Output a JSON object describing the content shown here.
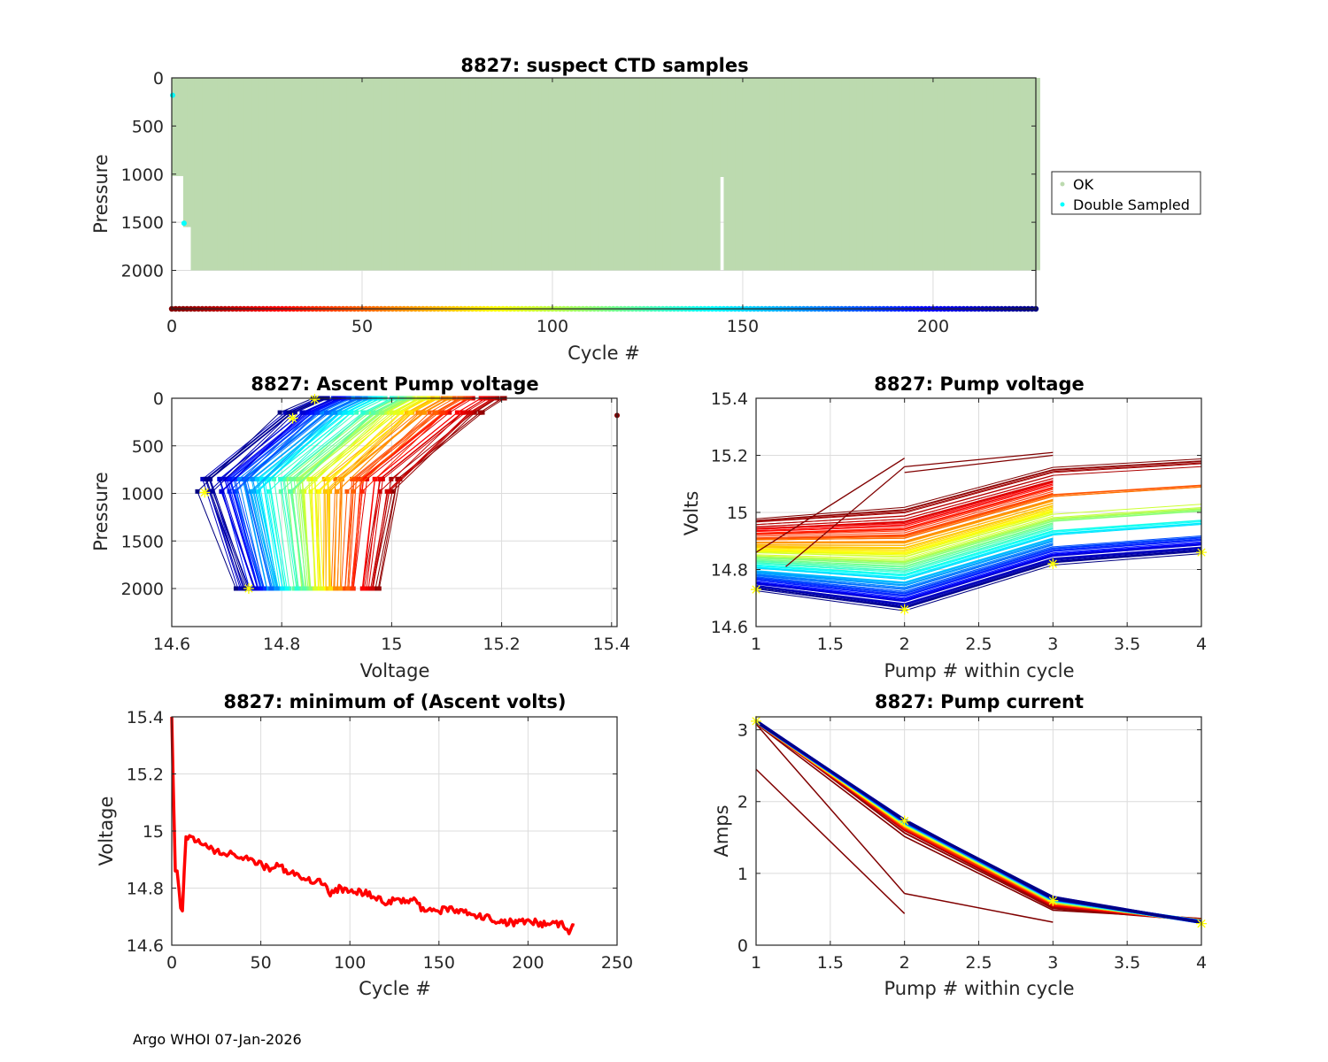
{
  "figure": {
    "footer": "Argo WHOI 07-Jan-2026",
    "float_id": "8827"
  },
  "chart_data": [
    {
      "id": "suspect-ctd",
      "type": "scatter",
      "title": "8827: suspect CTD samples",
      "xlabel": "Cycle #",
      "ylabel": "Pressure",
      "xlim": [
        0,
        227
      ],
      "ylim": [
        2400,
        0
      ],
      "y_reversed": true,
      "xticks": [
        0,
        50,
        100,
        150,
        200
      ],
      "yticks": [
        0,
        500,
        1000,
        1500,
        2000
      ],
      "grid": true,
      "legend": {
        "placement": "outside-right",
        "entries": [
          {
            "label": "OK",
            "color": "#bcdaaf"
          },
          {
            "label": "Double Sampled",
            "color": "#00ffff"
          }
        ]
      },
      "ok_region": {
        "cycles": [
          0,
          227
        ],
        "pressure_top": 0,
        "pressure_bottom": 2000,
        "gaps": [
          {
            "cycle": 0,
            "pressure_bottom": 1020
          },
          {
            "cycle": 1,
            "pressure_bottom": 1020
          },
          {
            "cycle": 2,
            "pressure_bottom": 1020
          },
          {
            "cycle": 3,
            "pressure_bottom": 1550
          },
          {
            "cycle": 4,
            "pressure_bottom": 1550
          },
          {
            "cycle": 144,
            "pressure_top": 1030,
            "pressure_bottom": 2000
          }
        ]
      },
      "double_sampled": [
        {
          "cycle": 0,
          "pressure": 180
        },
        {
          "cycle": 3,
          "pressure": 1510
        }
      ],
      "cycle_colorbar": {
        "y_pressure": 2400,
        "n_cycles": 227,
        "colormap": "jet-reversed"
      }
    },
    {
      "id": "ascent-pump-voltage",
      "type": "line",
      "title": "8827: Ascent Pump voltage",
      "xlabel": "Voltage",
      "ylabel": "Pressure",
      "xlim": [
        14.6,
        15.41
      ],
      "ylim": [
        2400,
        0
      ],
      "y_reversed": true,
      "xticks": [
        14.6,
        14.8,
        15,
        15.2,
        15.4
      ],
      "yticks": [
        0,
        500,
        1000,
        1500,
        2000
      ],
      "grid": true,
      "series_description": "One line per cycle colored by cycle number (jet colormap, dark red = early, dark blue = late); pump events at ~2000, ~1000 (or ~850), ~200 and ~0 dbar",
      "pressure_levels": [
        2000,
        850,
        150,
        0
      ],
      "voltage_at_levels_first_cycle": [
        14.98,
        15.02,
        15.17,
        15.21
      ],
      "voltage_at_levels_last_cycle": [
        14.72,
        14.65,
        14.8,
        14.86
      ],
      "outlier": {
        "voltage": 15.41,
        "pressure": 180
      },
      "highlight_last_cycle": [
        {
          "voltage": 14.74,
          "pressure": 2000
        },
        {
          "voltage": 14.66,
          "pressure": 990
        },
        {
          "voltage": 14.82,
          "pressure": 210
        },
        {
          "voltage": 14.86,
          "pressure": 10
        }
      ]
    },
    {
      "id": "pump-voltage",
      "type": "line",
      "title": "8827: Pump voltage",
      "xlabel": "Pump # within cycle",
      "ylabel": "Volts",
      "xlim": [
        1,
        4
      ],
      "ylim": [
        14.6,
        15.4
      ],
      "xticks": [
        1,
        1.5,
        2,
        2.5,
        3,
        3.5,
        4
      ],
      "xtick_labels": [
        "1",
        "1.5",
        "2",
        "2.5",
        "3",
        "3.5",
        "4"
      ],
      "yticks": [
        14.6,
        14.8,
        15,
        15.2,
        15.4
      ],
      "ytick_labels": [
        "14.6",
        "14.8",
        "15",
        "15.2",
        "15.4"
      ],
      "grid": true,
      "series_description": "One line per cycle; pump1 range 14.72-14.98, pump2 14.66-15.02, pump3 14.82-15.16, pump4 14.86-15.19",
      "first_cycle": [
        14.98,
        15.02,
        15.16,
        15.19
      ],
      "last_cycle": [
        14.73,
        14.66,
        14.82,
        14.86
      ],
      "anomalous_lines": [
        {
          "x": [
            1,
            2
          ],
          "y": [
            14.86,
            15.19
          ]
        },
        {
          "x": [
            1.2,
            2
          ],
          "y": [
            14.81,
            15.16
          ]
        },
        {
          "x": [
            2,
            3
          ],
          "y": [
            15.16,
            15.21
          ]
        },
        {
          "x": [
            2,
            3
          ],
          "y": [
            15.14,
            15.2
          ]
        }
      ]
    },
    {
      "id": "min-ascent-volts",
      "type": "line",
      "title": "8827: minimum of (Ascent volts)",
      "xlabel": "Cycle #",
      "ylabel": "Voltage",
      "xlim": [
        0,
        250
      ],
      "ylim": [
        14.6,
        15.4
      ],
      "xticks": [
        0,
        50,
        100,
        150,
        200,
        250
      ],
      "yticks": [
        14.6,
        14.8,
        15,
        15.2,
        15.4
      ],
      "ytick_labels": [
        "14.6",
        "14.8",
        "15",
        "15.2",
        "15.4"
      ],
      "grid": true,
      "color": "#ff0000",
      "x": [
        0,
        1,
        2,
        3,
        4,
        5,
        6,
        7,
        8,
        10,
        15,
        20,
        25,
        30,
        35,
        40,
        45,
        50,
        55,
        60,
        65,
        70,
        75,
        80,
        85,
        88,
        90,
        95,
        100,
        105,
        110,
        115,
        120,
        125,
        130,
        135,
        140,
        145,
        150,
        155,
        160,
        165,
        170,
        175,
        180,
        185,
        190,
        195,
        200,
        205,
        210,
        215,
        220,
        223,
        226
      ],
      "y": [
        15.4,
        15.12,
        14.86,
        14.86,
        14.8,
        14.73,
        14.72,
        14.86,
        14.98,
        14.98,
        14.96,
        14.95,
        14.93,
        14.92,
        14.92,
        14.91,
        14.9,
        14.88,
        14.87,
        14.88,
        14.86,
        14.84,
        14.83,
        14.82,
        14.82,
        14.78,
        14.79,
        14.8,
        14.78,
        14.79,
        14.78,
        14.77,
        14.75,
        14.76,
        14.76,
        14.76,
        14.73,
        14.72,
        14.72,
        14.73,
        14.72,
        14.72,
        14.7,
        14.7,
        14.69,
        14.68,
        14.68,
        14.68,
        14.68,
        14.68,
        14.67,
        14.68,
        14.67,
        14.65,
        14.67
      ]
    },
    {
      "id": "pump-current",
      "type": "line",
      "title": "8827: Pump current",
      "xlabel": "Pump # within cycle",
      "ylabel": "Amps",
      "xlim": [
        1,
        4
      ],
      "ylim": [
        0,
        3.18
      ],
      "xticks": [
        1,
        1.5,
        2,
        2.5,
        3,
        3.5,
        4
      ],
      "xtick_labels": [
        "1",
        "1.5",
        "2",
        "2.5",
        "3",
        "3.5",
        "4"
      ],
      "yticks": [
        0,
        1,
        2,
        3
      ],
      "grid": true,
      "series_description": "One line per cycle colored by cycle number; most cycles near main bundle",
      "main_bundle_late": [
        3.12,
        1.74,
        0.66,
        0.32
      ],
      "main_bundle_early": [
        3.1,
        1.52,
        0.47,
        0.36
      ],
      "anomalous_lines": [
        {
          "x": [
            1,
            2
          ],
          "y": [
            2.45,
            0.44
          ]
        },
        {
          "x": [
            1,
            2
          ],
          "y": [
            3.08,
            0.72
          ]
        },
        {
          "x": [
            2,
            3
          ],
          "y": [
            0.72,
            0.32
          ]
        }
      ],
      "highlight_last_cycle": [
        3.12,
        1.73,
        0.62,
        0.3
      ]
    }
  ]
}
